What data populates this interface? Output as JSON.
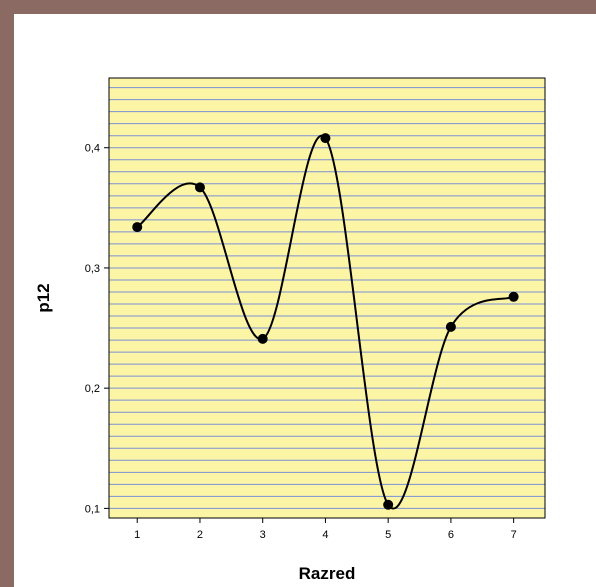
{
  "chart_data": {
    "type": "line",
    "title": "",
    "xlabel": "Razred",
    "ylabel": "p12",
    "x": [
      1,
      2,
      3,
      4,
      5,
      6,
      7
    ],
    "series": [
      {
        "values": [
          0.334,
          0.367,
          0.241,
          0.408,
          0.103,
          0.251,
          0.276
        ]
      }
    ],
    "curve": "smooth",
    "xlim": [
      0.55,
      7.5
    ],
    "ylim": [
      0.092,
      0.458
    ],
    "xticks": [
      1,
      2,
      3,
      4,
      5,
      6,
      7
    ],
    "xtick_labels": [
      "1",
      "2",
      "3",
      "4",
      "5",
      "6",
      "7"
    ],
    "yticks": [
      0.1,
      0.2,
      0.3,
      0.4
    ],
    "ytick_labels": [
      "0,1",
      "0,2",
      "0,3",
      "0,4"
    ],
    "grid": "horizontal",
    "plot_background": "#fcf5a6",
    "grid_color": "#7b8fd6",
    "line_color": "#000000",
    "marker_color": "#000000",
    "background_color": "#8a6a63"
  }
}
